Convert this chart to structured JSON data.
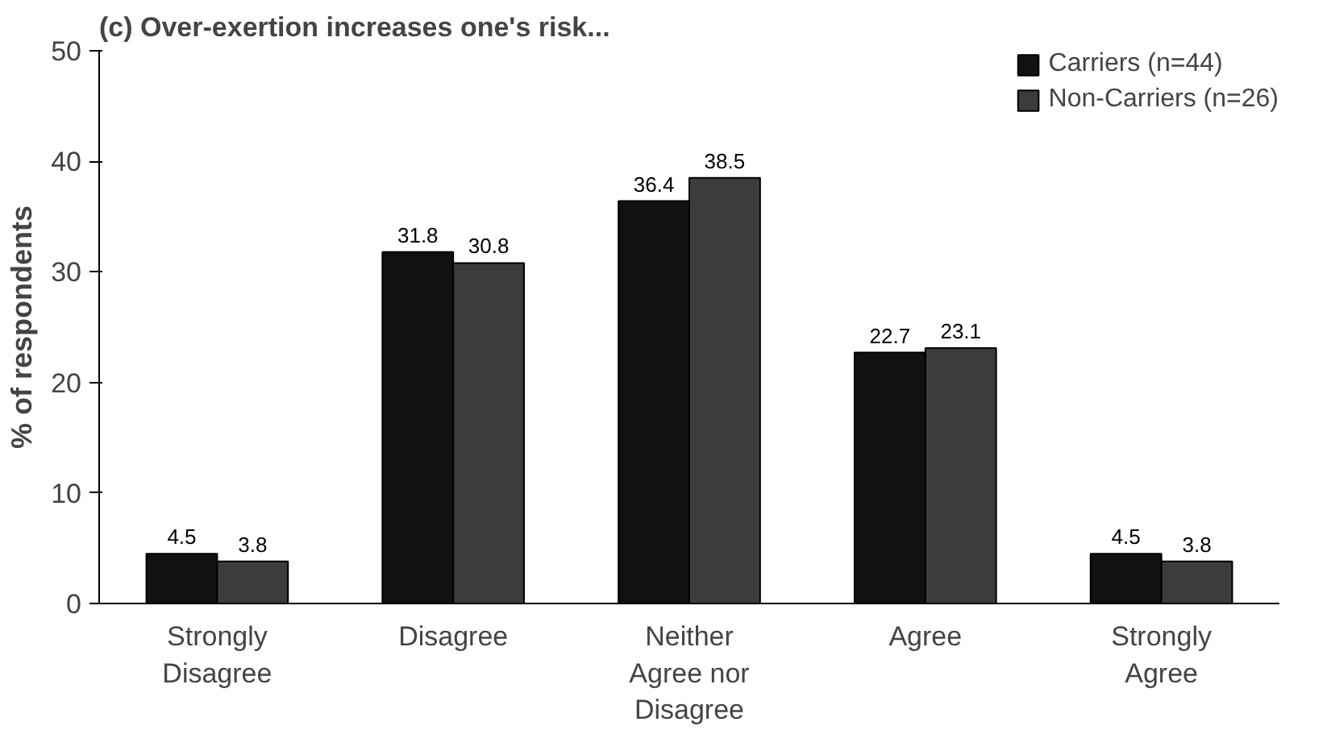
{
  "chart_data": {
    "type": "bar",
    "title": "(c) Over-exertion increases one's risk...",
    "ylabel": "% of respondents",
    "categories": [
      "Strongly\nDisagree",
      "Disagree",
      "Neither\nAgree nor\nDisagree",
      "Agree",
      "Strongly\nAgree"
    ],
    "series": [
      {
        "name": "Carriers (n=44)",
        "color": "#111111",
        "values": [
          4.5,
          31.8,
          36.4,
          22.7,
          4.5
        ]
      },
      {
        "name": "Non-Carriers (n=26)",
        "color": "#3c3c3c",
        "values": [
          3.8,
          30.8,
          38.5,
          23.1,
          3.8
        ]
      }
    ],
    "ylim": [
      0,
      50
    ],
    "yticks": [
      0,
      10,
      20,
      30,
      40,
      50
    ],
    "grid": false,
    "legend": "top right",
    "data_labels": true
  }
}
